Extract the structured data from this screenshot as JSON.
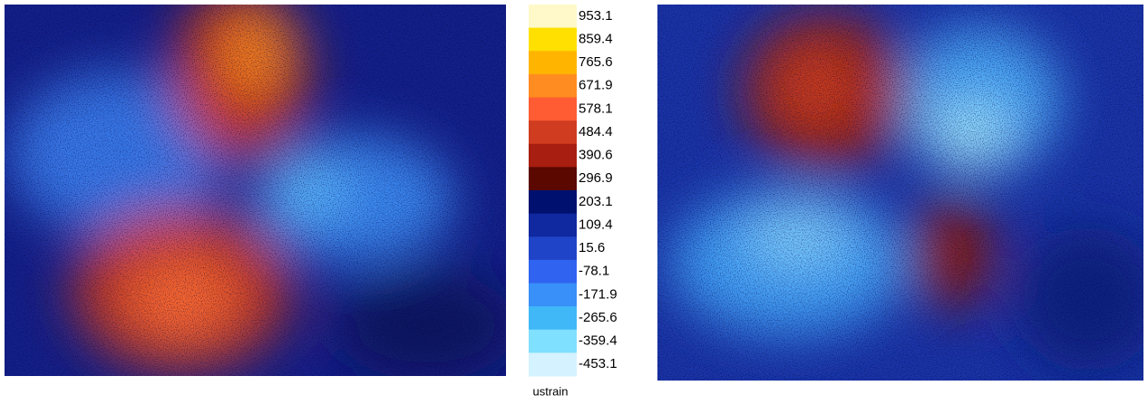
{
  "colorbar": {
    "unit": "ustrain",
    "levels": [
      {
        "label": "953.1",
        "color": "#fff8c8"
      },
      {
        "label": "859.4",
        "color": "#ffe000"
      },
      {
        "label": "765.6",
        "color": "#ffb400"
      },
      {
        "label": "671.9",
        "color": "#ff8c20"
      },
      {
        "label": "578.1",
        "color": "#ff5c34"
      },
      {
        "label": "484.4",
        "color": "#d03c20"
      },
      {
        "label": "390.6",
        "color": "#a81e10"
      },
      {
        "label": "296.9",
        "color": "#5a0800"
      },
      {
        "label": "203.1",
        "color": "#00106e"
      },
      {
        "label": "109.4",
        "color": "#1028a0"
      },
      {
        "label": "15.6",
        "color": "#2044c8"
      },
      {
        "label": "-78.1",
        "color": "#3064f0"
      },
      {
        "label": "-171.9",
        "color": "#3890f8"
      },
      {
        "label": "-265.6",
        "color": "#40b8f8"
      },
      {
        "label": "-359.4",
        "color": "#80e0ff"
      },
      {
        "label": "-453.1",
        "color": "#d4f2ff"
      }
    ]
  }
}
